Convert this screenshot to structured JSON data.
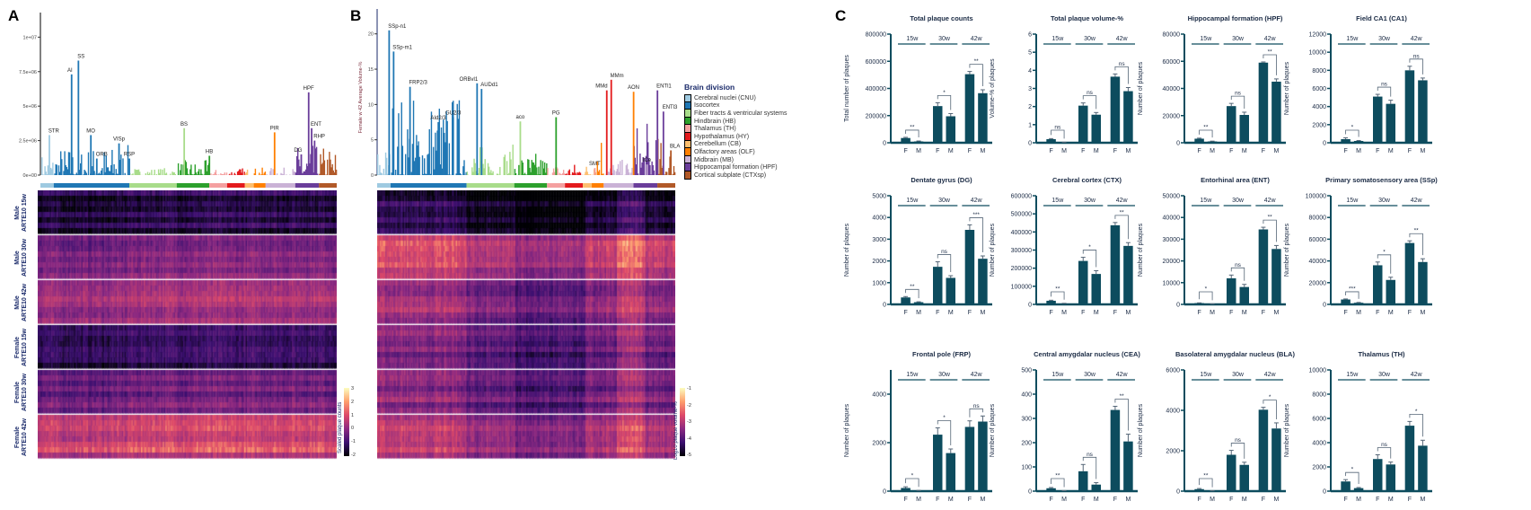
{
  "panel_labels": [
    "A",
    "B",
    "C"
  ],
  "colors": {
    "bar": "#0d4c5e",
    "axis": "#0d4c5e",
    "divisions": [
      "#9ecae1",
      "#1f77b4",
      "#a8dc8a",
      "#2ca02c",
      "#f4a0a0",
      "#e31a1c",
      "#fdbf6f",
      "#ff7f00",
      "#cab2d6",
      "#6a3d9a",
      "#b15928"
    ]
  },
  "legend": {
    "title": "Brain division",
    "items": [
      "Cerebral nuclei (CNU)",
      "Isocortex",
      "Fiber tracts & ventricular systems",
      "Hindbrain (HB)",
      "Thalamus (TH)",
      "Hypothalamus (HY)",
      "Cerebellum (CB)",
      "Olfactory areas (OLF)",
      "Midbrain (MB)",
      "Hippocampal formation (HPF)",
      "Cortical subplate (CTXsp)"
    ]
  },
  "chart_data": [
    {
      "id": "A-bar",
      "type": "bar",
      "ylabel": "",
      "ylim": [
        0,
        11000000
      ],
      "yticks": [
        "0e+00",
        "2.5e+06",
        "5e+06",
        "7.5e+06",
        "1e+07"
      ],
      "ytick_values": [
        0,
        2500000,
        5000000,
        7500000,
        10000000
      ],
      "annotated_peaks": [
        {
          "label": "STR",
          "division": 0,
          "value": 2900000
        },
        {
          "label": "AI",
          "division": 1,
          "value": 7300000
        },
        {
          "label": "SS",
          "division": 1,
          "value": 8300000
        },
        {
          "label": "MO",
          "division": 1,
          "value": 2900000
        },
        {
          "label": "ORB",
          "division": 1,
          "value": 1200000
        },
        {
          "label": "VISp",
          "division": 1,
          "value": 2300000
        },
        {
          "label": "RSP",
          "division": 1,
          "value": 1200000
        },
        {
          "label": "BS",
          "division": 2,
          "value": 3400000
        },
        {
          "label": "HB",
          "division": 3,
          "value": 1400000
        },
        {
          "label": "PIR",
          "division": 7,
          "value": 3100000
        },
        {
          "label": "DG",
          "division": 9,
          "value": 1500000
        },
        {
          "label": "HPF",
          "division": 9,
          "value": 6000000
        },
        {
          "label": "ENT",
          "division": 9,
          "value": 3400000
        },
        {
          "label": "RHP",
          "division": 9,
          "value": 2500000
        }
      ]
    },
    {
      "id": "A-heatmap",
      "type": "heatmap",
      "row_groups": [
        {
          "sex": "Male",
          "group": "ARTE10 15w"
        },
        {
          "sex": "Male",
          "group": "ARTE10 30w"
        },
        {
          "sex": "Male",
          "group": "ARTE10 42w"
        },
        {
          "sex": "Female",
          "group": "ARTE10 15w"
        },
        {
          "sex": "Female",
          "group": "ARTE10 30w"
        },
        {
          "sex": "Female",
          "group": "ARTE10 42w"
        }
      ],
      "colorbar_label": "Scaled plaque counts",
      "colorbar_ticks": [
        "3",
        "2",
        "1",
        "0",
        "-1",
        "-2"
      ]
    },
    {
      "id": "B-bar",
      "type": "bar",
      "ylabel": "Female w 42 Average Volume-%",
      "ylim": [
        0,
        22
      ],
      "yticks": [
        "0",
        "5",
        "10",
        "15",
        "20"
      ],
      "ytick_values": [
        0,
        5,
        10,
        15,
        20
      ],
      "annotated_peaks": [
        {
          "label": "SSp-n1",
          "division": 1,
          "value": 20.5
        },
        {
          "label": "SSp-m1",
          "division": 1,
          "value": 17.5
        },
        {
          "label": "FRP2/3",
          "division": 1,
          "value": 12.5
        },
        {
          "label": "AId2/3",
          "division": 1,
          "value": 7.5
        },
        {
          "label": "GU2/3",
          "division": 1,
          "value": 8.2
        },
        {
          "label": "ORBvl1",
          "division": 1,
          "value": 13
        },
        {
          "label": "AUDd1",
          "division": 1,
          "value": 12.2
        },
        {
          "label": "aco",
          "division": 2,
          "value": 7.6
        },
        {
          "label": "PG",
          "division": 3,
          "value": 8.2
        },
        {
          "label": "SMT",
          "division": 4,
          "value": 1.0
        },
        {
          "label": "MMd",
          "division": 5,
          "value": 12
        },
        {
          "label": "MMm",
          "division": 5,
          "value": 13.5
        },
        {
          "label": "AON",
          "division": 7,
          "value": 11.8
        },
        {
          "label": "ICe",
          "division": 8,
          "value": 1.5
        },
        {
          "label": "ENTl1",
          "division": 9,
          "value": 12
        },
        {
          "label": "ENTl3",
          "division": 9,
          "value": 9
        },
        {
          "label": "BLA",
          "division": 10,
          "value": 3.5
        }
      ]
    },
    {
      "id": "B-heatmap",
      "type": "heatmap",
      "colorbar_label": "Log10 plaque volume-%",
      "colorbar_ticks": [
        "-1",
        "-2",
        "-3",
        "-4",
        "-5"
      ]
    },
    {
      "id": "C",
      "type": "bar",
      "groups": [
        "15w",
        "30w",
        "42w"
      ],
      "categories": [
        "F",
        "M"
      ],
      "charts": [
        {
          "title": "Total plaque counts",
          "ylabel": "Total number of plaques",
          "ylim": [
            0,
            800000
          ],
          "yticks": [
            0,
            200000,
            400000,
            600000,
            800000
          ],
          "F": [
            35000,
            270000,
            505000
          ],
          "M": [
            10000,
            195000,
            365000
          ],
          "F_err": [
            5000,
            25000,
            20000
          ],
          "M_err": [
            3000,
            20000,
            25000
          ],
          "sig": [
            "**",
            "*",
            "**"
          ]
        },
        {
          "title": "Total plaque volume-%",
          "ylabel": "Volume-% of plaques",
          "ylim": [
            0,
            6
          ],
          "yticks": [
            0,
            1,
            2,
            3,
            4,
            5,
            6
          ],
          "F": [
            0.2,
            2.05,
            3.65
          ],
          "M": [
            0.02,
            1.55,
            2.85
          ],
          "F_err": [
            0.03,
            0.15,
            0.15
          ],
          "M_err": [
            0.01,
            0.12,
            0.2
          ],
          "sig": [
            "ns",
            "ns",
            "ns"
          ]
        },
        {
          "title": "Hippocampal formation (HPF)",
          "ylabel": "Number of plaques",
          "ylim": [
            0,
            80000
          ],
          "yticks": [
            0,
            20000,
            40000,
            60000,
            80000
          ],
          "F": [
            3000,
            27000,
            59000
          ],
          "M": [
            1000,
            20500,
            45000
          ],
          "F_err": [
            400,
            2000,
            500
          ],
          "M_err": [
            200,
            2000,
            2000
          ],
          "sig": [
            "**",
            "ns",
            "**"
          ]
        },
        {
          "title": "Field CA1 (CA1)",
          "ylabel": "Number of plaques",
          "ylim": [
            0,
            12000
          ],
          "yticks": [
            0,
            2000,
            4000,
            6000,
            8000,
            10000,
            12000
          ],
          "F": [
            400,
            5100,
            8000
          ],
          "M": [
            200,
            4300,
            6900
          ],
          "F_err": [
            150,
            250,
            450
          ],
          "M_err": [
            50,
            400,
            250
          ],
          "sig": [
            "*",
            "ns",
            "ns"
          ]
        },
        {
          "title": "Dentate gyrus (DG)",
          "ylabel": "Number of plaques",
          "ylim": [
            0,
            5000
          ],
          "yticks": [
            0,
            1000,
            2000,
            3000,
            4000,
            5000
          ],
          "F": [
            320,
            1730,
            3430
          ],
          "M": [
            100,
            1220,
            2100
          ],
          "F_err": [
            40,
            230,
            230
          ],
          "M_err": [
            20,
            100,
            130
          ],
          "sig": [
            "**",
            "ns",
            "***"
          ]
        },
        {
          "title": "Cerebral cortex (CTX)",
          "ylabel": "Number of plaques",
          "ylim": [
            0,
            600000
          ],
          "yticks": [
            0,
            100000,
            200000,
            300000,
            400000,
            500000,
            600000
          ],
          "F": [
            20000,
            240000,
            437000
          ],
          "M": [
            5000,
            168000,
            323000
          ],
          "F_err": [
            3000,
            20000,
            15000
          ],
          "M_err": [
            1000,
            18000,
            18000
          ],
          "sig": [
            "**",
            "*",
            "**"
          ]
        },
        {
          "title": "Entorhinal area (ENT)",
          "ylabel": "Number of plaques",
          "ylim": [
            0,
            50000
          ],
          "yticks": [
            0,
            10000,
            20000,
            30000,
            40000,
            50000
          ],
          "F": [
            600,
            12000,
            34500
          ],
          "M": [
            200,
            8000,
            25500
          ],
          "F_err": [
            100,
            1500,
            1000
          ],
          "M_err": [
            50,
            1200,
            1600
          ],
          "sig": [
            "*",
            "ns",
            "**"
          ]
        },
        {
          "title": "Primary somatosensory area (SSp)",
          "ylabel": "Number of plaques",
          "ylim": [
            0,
            100000
          ],
          "yticks": [
            0,
            20000,
            40000,
            60000,
            80000,
            100000
          ],
          "F": [
            4500,
            36000,
            56500
          ],
          "M": [
            1500,
            22500,
            39000
          ],
          "F_err": [
            500,
            3000,
            2000
          ],
          "M_err": [
            300,
            2500,
            3000
          ],
          "sig": [
            "***",
            "*",
            "**"
          ]
        },
        {
          "title": "Frontal pole (FRP)",
          "ylabel": "Number of plaques",
          "ylim": [
            0,
            5000
          ],
          "yticks": [
            0,
            2000,
            4000
          ],
          "F": [
            130,
            2330,
            2650
          ],
          "M": [
            20,
            1570,
            2870
          ],
          "F_err": [
            50,
            280,
            250
          ],
          "M_err": [
            10,
            170,
            230
          ],
          "sig": [
            "*",
            "*",
            "ns"
          ]
        },
        {
          "title": "Central amygdalar nucleus (CEA)",
          "ylabel": "Number of plaques",
          "ylim": [
            0,
            500
          ],
          "yticks": [
            0,
            100,
            200,
            300,
            400,
            500
          ],
          "F": [
            12,
            82,
            335
          ],
          "M": [
            1,
            27,
            205
          ],
          "F_err": [
            3,
            28,
            15
          ],
          "M_err": [
            1,
            8,
            30
          ],
          "sig": [
            "**",
            "ns",
            "**"
          ]
        },
        {
          "title": "Basolateral amygdalar nucleus (BLA)",
          "ylabel": "Number of plaques",
          "ylim": [
            0,
            6000
          ],
          "yticks": [
            0,
            2000,
            4000,
            6000
          ],
          "F": [
            100,
            1800,
            4030
          ],
          "M": [
            10,
            1300,
            3100
          ],
          "F_err": [
            30,
            220,
            120
          ],
          "M_err": [
            5,
            130,
            280
          ],
          "sig": [
            "**",
            "ns",
            "*"
          ]
        },
        {
          "title": "Thalamus (TH)",
          "ylabel": "Number of plaques",
          "ylim": [
            0,
            10000
          ],
          "yticks": [
            0,
            2000,
            4000,
            6000,
            8000,
            10000
          ],
          "F": [
            800,
            2650,
            5400
          ],
          "M": [
            250,
            2200,
            3750
          ],
          "F_err": [
            150,
            350,
            350
          ],
          "M_err": [
            50,
            200,
            450
          ],
          "sig": [
            "*",
            "ns",
            "*"
          ]
        }
      ]
    }
  ]
}
